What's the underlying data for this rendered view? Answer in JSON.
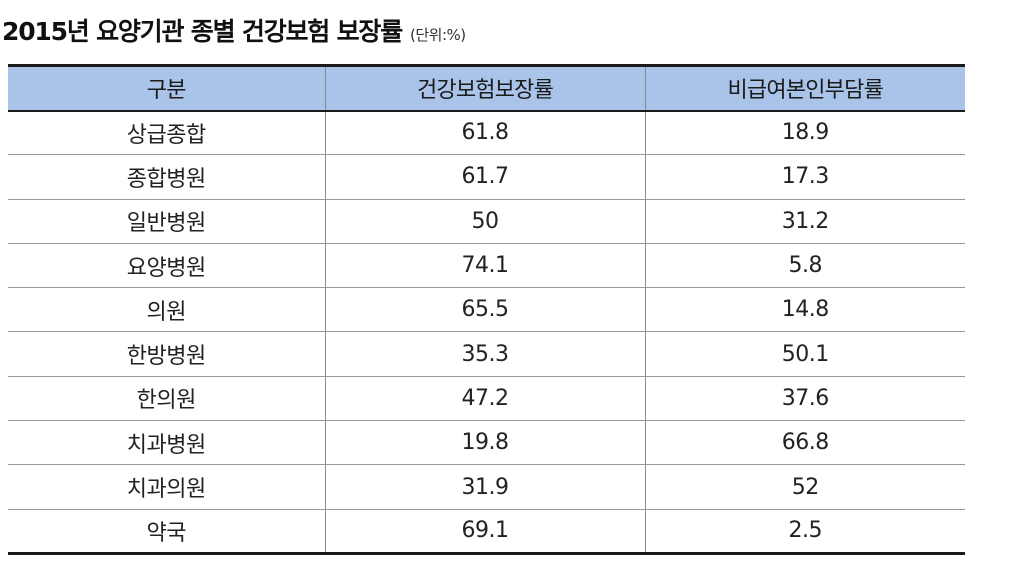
{
  "title": "2015년 요양기관 종별 건강보험 보장률",
  "unit": "(단위:%)",
  "colors": {
    "header_bg": "#a9c4e8",
    "rule": "#1a1a1a"
  },
  "chart_data": {
    "type": "table",
    "title": "2015년 요양기관 종별 건강보험 보장률",
    "unit": "(단위:%)",
    "columns": [
      "구분",
      "건강보험보장률",
      "비급여본인부담률"
    ],
    "rows": [
      [
        "상급종합",
        "61.8",
        "18.9"
      ],
      [
        "종합병원",
        "61.7",
        "17.3"
      ],
      [
        "일반병원",
        "50",
        "31.2"
      ],
      [
        "요양병원",
        "74.1",
        "5.8"
      ],
      [
        "의원",
        "65.5",
        "14.8"
      ],
      [
        "한방병원",
        "35.3",
        "50.1"
      ],
      [
        "한의원",
        "47.2",
        "37.6"
      ],
      [
        "치과병원",
        "19.8",
        "66.8"
      ],
      [
        "치과의원",
        "31.9",
        "52"
      ],
      [
        "약국",
        "69.1",
        "2.5"
      ]
    ]
  }
}
